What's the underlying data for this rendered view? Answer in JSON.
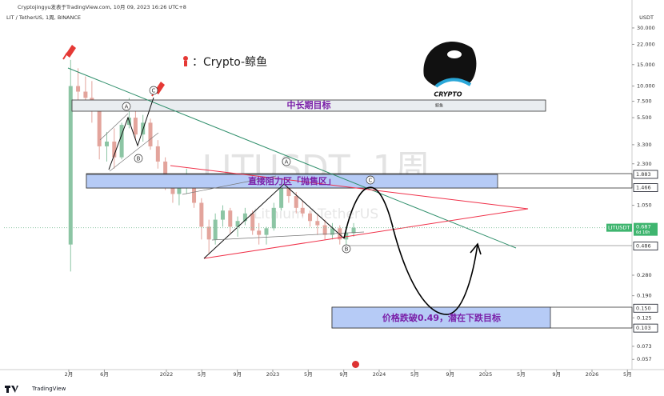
{
  "header": {
    "publisher": "Cryptojingyu发表于TradingView.com, 10月 09, 2023 16:26 UTC+8",
    "symbol": "LIT / TetherUS, 1周, BINANCE"
  },
  "chart_data": {
    "type": "candlestick",
    "watermark": "LITUSDT, 1周",
    "watermark_sub": "Lithium / TetherUS",
    "y_unit": "USDT",
    "log_scale": true,
    "up_color": "#8cc5a4",
    "down_color": "#e3a49c",
    "x": [
      2021.1,
      2021.17,
      2021.24,
      2021.3,
      2021.37,
      2021.44,
      2021.51,
      2021.58,
      2021.65,
      2021.71,
      2021.78,
      2021.85,
      2021.92,
      2021.99,
      2022.06,
      2022.12,
      2022.19,
      2022.26,
      2022.33,
      2022.4,
      2022.46,
      2022.53,
      2022.6,
      2022.67,
      2022.74,
      2022.81,
      2022.87,
      2022.94,
      2023.01,
      2023.08,
      2023.15,
      2023.22,
      2023.28,
      2023.35,
      2023.42,
      2023.49,
      2023.56,
      2023.63,
      2023.69,
      2023.76
    ],
    "open": [
      0.5,
      10,
      9,
      8,
      6.5,
      3.2,
      3.5,
      2.6,
      4.8,
      5.5,
      4.0,
      5.0,
      3.2,
      2.4,
      1.6,
      1.3,
      1.45,
      1.6,
      1.1,
      0.7,
      0.55,
      0.8,
      0.95,
      0.7,
      0.78,
      0.9,
      0.65,
      0.6,
      0.68,
      1.0,
      1.5,
      1.25,
      1.0,
      0.9,
      0.78,
      0.72,
      0.6,
      0.68,
      0.55,
      0.62
    ],
    "high": [
      16.4,
      14,
      12,
      11,
      7.5,
      4.2,
      4.5,
      5.0,
      8.0,
      6.5,
      5.8,
      5.4,
      3.6,
      2.6,
      1.8,
      1.6,
      2.1,
      1.7,
      1.2,
      0.8,
      0.9,
      1.05,
      1.0,
      0.85,
      1.0,
      0.95,
      0.75,
      0.7,
      1.1,
      1.9,
      1.6,
      1.35,
      1.15,
      0.95,
      0.88,
      0.8,
      0.75,
      0.72,
      0.7,
      0.75
    ],
    "low": [
      0.3,
      7,
      6.5,
      5,
      2.5,
      2.4,
      2.1,
      2.5,
      4.5,
      3.6,
      3.5,
      3.0,
      2.1,
      1.4,
      1.1,
      1.05,
      1.3,
      1.0,
      0.55,
      0.42,
      0.5,
      0.7,
      0.62,
      0.58,
      0.72,
      0.6,
      0.5,
      0.5,
      0.65,
      0.95,
      1.1,
      0.9,
      0.85,
      0.7,
      0.6,
      0.55,
      0.55,
      0.5,
      0.5,
      0.58
    ],
    "close": [
      10,
      9,
      8,
      6.5,
      3.2,
      3.5,
      2.6,
      4.8,
      5.5,
      4.0,
      5.0,
      3.2,
      2.4,
      1.6,
      1.3,
      1.45,
      1.6,
      1.1,
      0.7,
      0.55,
      0.8,
      0.95,
      0.7,
      0.78,
      0.9,
      0.65,
      0.6,
      0.68,
      1.0,
      1.5,
      1.25,
      1.0,
      0.9,
      0.78,
      0.72,
      0.6,
      0.68,
      0.55,
      0.62,
      0.687
    ],
    "xlim": [
      2020.474,
      2026.376
    ],
    "ylim": [
      0.047,
      37.6
    ],
    "xticks": [
      {
        "value": 2021.083,
        "label": "2月"
      },
      {
        "value": 2021.417,
        "label": "6月"
      },
      {
        "value": 2022,
        "label": "2022"
      },
      {
        "value": 2022.333,
        "label": "5月"
      },
      {
        "value": 2022.667,
        "label": "9月"
      },
      {
        "value": 2023,
        "label": "2023"
      },
      {
        "value": 2023.333,
        "label": "5月"
      },
      {
        "value": 2023.667,
        "label": "9月"
      },
      {
        "value": 2024,
        "label": "2024"
      },
      {
        "value": 2024.333,
        "label": "5月"
      },
      {
        "value": 2024.667,
        "label": "9月"
      },
      {
        "value": 2025,
        "label": "2025"
      },
      {
        "value": 2025.333,
        "label": "5月"
      },
      {
        "value": 2025.667,
        "label": "9月"
      },
      {
        "value": 2026,
        "label": "2026"
      },
      {
        "value": 2026.333,
        "label": "5月"
      }
    ],
    "yticks": [
      {
        "value": 30,
        "label": "30.000"
      },
      {
        "value": 22,
        "label": "22.000"
      },
      {
        "value": 15,
        "label": "15.000"
      },
      {
        "value": 10,
        "label": "10.000"
      },
      {
        "value": 7.5,
        "label": "7.500"
      },
      {
        "value": 5.5,
        "label": "5.500"
      },
      {
        "value": 3.3,
        "label": "3.300"
      },
      {
        "value": 2.3,
        "label": "2.300"
      },
      {
        "value": 1.05,
        "label": "1.050"
      },
      {
        "value": 0.28,
        "label": "0.280"
      },
      {
        "value": 0.19,
        "label": "0.190"
      },
      {
        "value": 0.125,
        "label": "0.125"
      },
      {
        "value": 0.073,
        "label": "0.073"
      },
      {
        "value": 0.057,
        "label": "0.057"
      }
    ],
    "price_labels": [
      {
        "value": 1.883,
        "label": "1.883"
      },
      {
        "value": 1.466,
        "label": "1.466"
      },
      {
        "value": 0.486,
        "label": "0.486"
      },
      {
        "value": 0.15,
        "label": "0.150"
      },
      {
        "value": 0.103,
        "label": "0.103"
      }
    ],
    "last_price": {
      "symbol": "LITUSDT",
      "value": 0.687,
      "label": "0.687",
      "countdown": "6d 16h"
    },
    "annotations": {
      "author_tag": "：Crypto-鲸鱼",
      "target_zone": "中长期目标",
      "resistance_zone": "直接阻力区「抛售区」",
      "breakdown_target": "价格跌破0.49，潜在下跌目标",
      "logo_text": "CRYPTO",
      "logo_sub": "鲸鱼",
      "wave_labels": [
        "A",
        "B",
        "C",
        "A",
        "B",
        "C"
      ]
    }
  },
  "footer": "TradingView"
}
